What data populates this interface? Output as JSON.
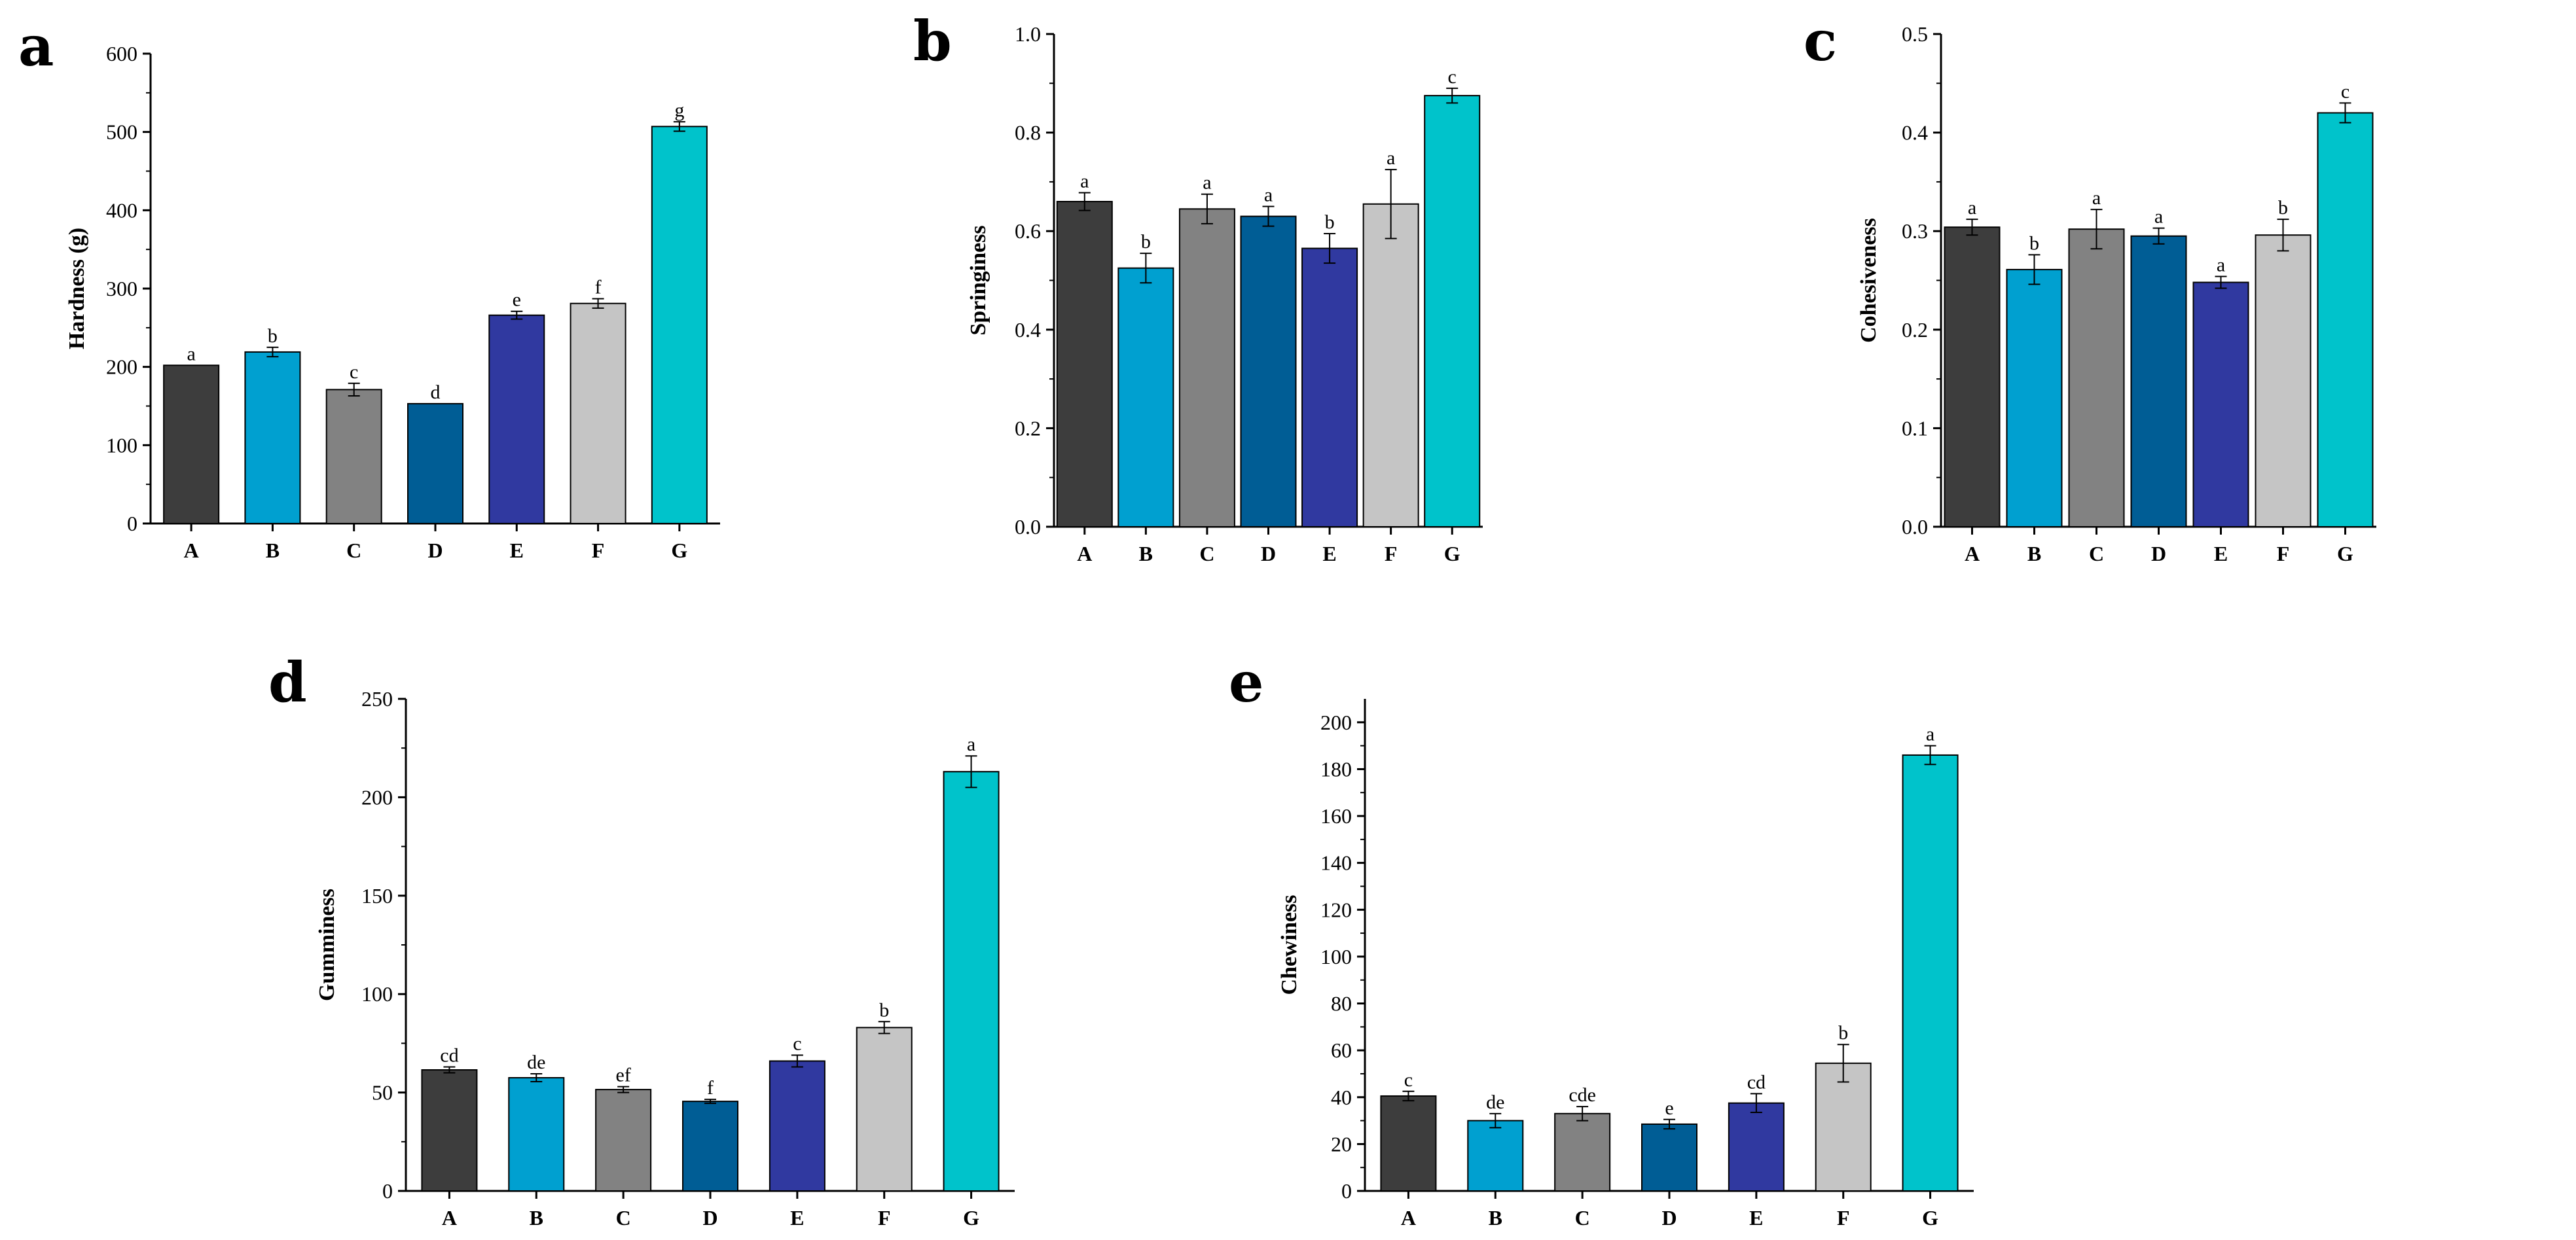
{
  "colors": {
    "A": "#3d3d3d",
    "B": "#00a0d0",
    "C": "#828282",
    "D": "#005d95",
    "E": "#3039a0",
    "F": "#c5c5c5",
    "G": "#00c3cb"
  },
  "chart_data": [
    {
      "type": "bar",
      "panel": "a",
      "ylabel": "Hardness (g)",
      "categories": [
        "A",
        "B",
        "C",
        "D",
        "E",
        "F",
        "G"
      ],
      "values": [
        202,
        219,
        171,
        153,
        266,
        281,
        507
      ],
      "errors": [
        0,
        6,
        8,
        0,
        5,
        6,
        6
      ],
      "labels": [
        "a",
        "b",
        "c",
        "d",
        "e",
        "f",
        "g"
      ],
      "ylim": [
        0,
        600
      ],
      "yticks": [
        0,
        100,
        200,
        300,
        400,
        500,
        600
      ],
      "ytick_labels": [
        "0",
        "100",
        "200",
        "300",
        "400",
        "500",
        "600"
      ]
    },
    {
      "type": "bar",
      "panel": "b",
      "ylabel": "Springiness",
      "categories": [
        "A",
        "B",
        "C",
        "D",
        "E",
        "F",
        "G"
      ],
      "values": [
        0.66,
        0.525,
        0.645,
        0.63,
        0.565,
        0.655,
        0.875
      ],
      "errors": [
        0.018,
        0.03,
        0.03,
        0.02,
        0.03,
        0.07,
        0.015
      ],
      "labels": [
        "a",
        "b",
        "a",
        "a",
        "b",
        "a",
        "c"
      ],
      "ylim": [
        0,
        1.0
      ],
      "yticks": [
        0,
        0.2,
        0.4,
        0.6,
        0.8,
        1.0
      ],
      "ytick_labels": [
        "0.0",
        "0.2",
        "0.4",
        "0.6",
        "0.8",
        "1.0"
      ]
    },
    {
      "type": "bar",
      "panel": "c",
      "ylabel": "Cohesiveness",
      "categories": [
        "A",
        "B",
        "C",
        "D",
        "E",
        "F",
        "G"
      ],
      "values": [
        0.304,
        0.261,
        0.302,
        0.295,
        0.248,
        0.296,
        0.42
      ],
      "errors": [
        0.008,
        0.015,
        0.02,
        0.008,
        0.006,
        0.016,
        0.01
      ],
      "labels": [
        "a",
        "b",
        "a",
        "a",
        "a",
        "b",
        "c"
      ],
      "ylim": [
        0,
        0.5
      ],
      "yticks": [
        0,
        0.1,
        0.2,
        0.3,
        0.4,
        0.5
      ],
      "ytick_labels": [
        "0.0",
        "0.1",
        "0.2",
        "0.3",
        "0.4",
        "0.5"
      ]
    },
    {
      "type": "bar",
      "panel": "d",
      "ylabel": "Gumminess",
      "categories": [
        "A",
        "B",
        "C",
        "D",
        "E",
        "F",
        "G"
      ],
      "values": [
        61.5,
        57.5,
        51.5,
        45.5,
        66,
        83,
        213
      ],
      "errors": [
        1.5,
        2,
        1.5,
        1,
        3,
        3,
        8
      ],
      "labels": [
        "cd",
        "de",
        "ef",
        "f",
        "c",
        "b",
        "a"
      ],
      "ylim": [
        0,
        250
      ],
      "yticks": [
        0,
        50,
        100,
        150,
        200,
        250
      ],
      "ytick_labels": [
        "0",
        "50",
        "100",
        "150",
        "200",
        "250"
      ]
    },
    {
      "type": "bar",
      "panel": "e",
      "ylabel": "Chewiness",
      "categories": [
        "A",
        "B",
        "C",
        "D",
        "E",
        "F",
        "G"
      ],
      "values": [
        40.5,
        30,
        33,
        28.5,
        37.5,
        54.5,
        186
      ],
      "errors": [
        2,
        3,
        3,
        2,
        4,
        8,
        4
      ],
      "labels": [
        "c",
        "de",
        "cde",
        "e",
        "cd",
        "b",
        "a"
      ],
      "ylim": [
        0,
        210
      ],
      "yticks": [
        0,
        20,
        40,
        60,
        80,
        100,
        120,
        140,
        160,
        180,
        200
      ],
      "ytick_labels": [
        "0",
        "20",
        "40",
        "60",
        "80",
        "100",
        "120",
        "140",
        "160",
        "180",
        "200"
      ]
    }
  ]
}
